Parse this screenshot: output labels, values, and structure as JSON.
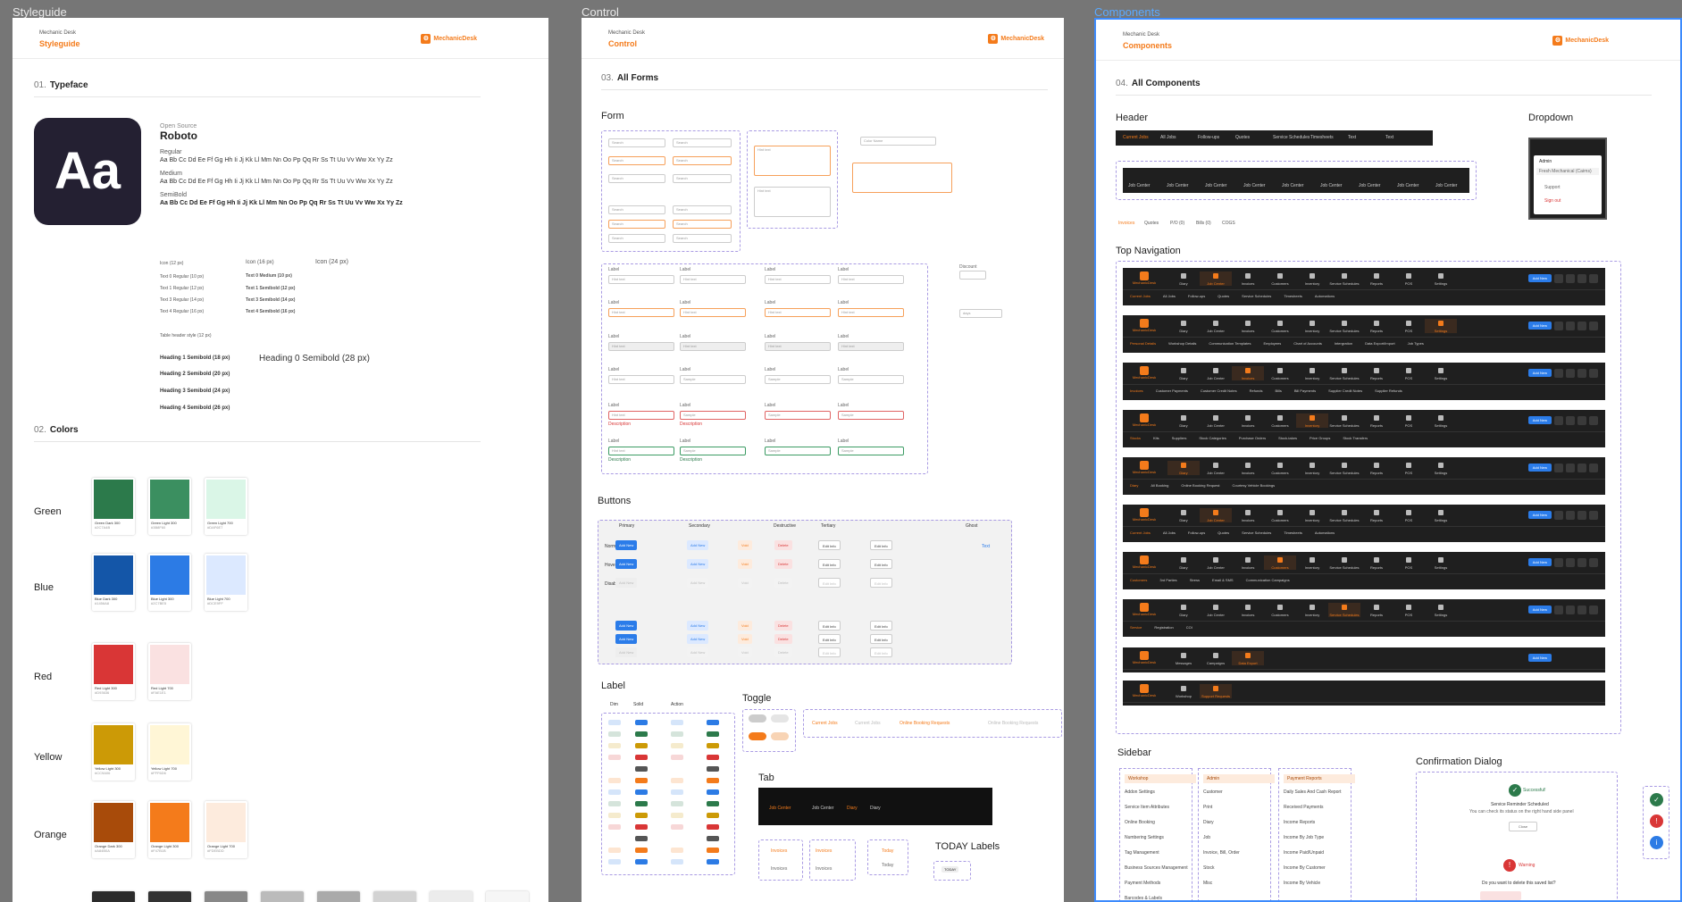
{
  "frames": {
    "styleguide": "Styleguide",
    "control": "Control",
    "components": "Components"
  },
  "brand": {
    "product": "Mechanic Desk",
    "logo_text": "MechanicDesk",
    "accent": "#f47b1b"
  },
  "styleguide": {
    "sec1_num": "01.",
    "sec1_title": "Typeface",
    "open_source": "Open Source",
    "family": "Roboto",
    "aa": "Aa",
    "regular": "Regular",
    "medium": "Medium",
    "semibold": "SemiBold",
    "alphabet": "Aa Bb Cc Dd Ee Ff Gg Hh Ii Jj Kk Ll Mm Nn Oo Pp Qq Rr Ss Tt Uu Vv Ww Xx Yy Zz",
    "icon12": "Icon (12 px)",
    "icon16": "Icon (16 px)",
    "icon24": "Icon (24 px)",
    "text_styles": [
      "Text 0 Regular (10 px)",
      "Text 1 Regular (12 px)",
      "Text 3 Regular (14 px)",
      "Text 4 Regular (16 px)",
      "Table header style (12 px)"
    ],
    "text_semibold": [
      "Text 0 Medium (10 px)",
      "Text 1 Semibold (12 px)",
      "Text 3 Semibold (14 px)",
      "Text 4 Semibold (16 px)"
    ],
    "headings": [
      "Heading 1 Semibold (18 px)",
      "Heading 2 Semibold (20 px)",
      "Heading 3 Semibold (24 px)",
      "Heading 4 Semibold (26 px)"
    ],
    "heading0": "Heading 0 Semibold (28 px)",
    "sec2_num": "02.",
    "sec2_title": "Colors",
    "colors": [
      {
        "group": "Green",
        "swatches": [
          {
            "name": "Green Dark 300",
            "hex": "#2C7A4B",
            "color": "#2c7a4b"
          },
          {
            "name": "Green Light 300",
            "hex": "#3B8F60",
            "color": "#3b8f60"
          },
          {
            "name": "Green Light 700",
            "hex": "#DAF6E7",
            "color": "#daf6e7"
          }
        ]
      },
      {
        "group": "Blue",
        "swatches": [
          {
            "name": "Blue Dark 300",
            "hex": "#1456A8",
            "color": "#1456a8"
          },
          {
            "name": "Blue Light 300",
            "hex": "#2C7BE5",
            "color": "#2c7be5"
          },
          {
            "name": "Blue Light 700",
            "hex": "#DCE9FF",
            "color": "#dce9ff"
          }
        ]
      },
      {
        "group": "Red",
        "swatches": [
          {
            "name": "Red Light 300",
            "hex": "#D93636",
            "color": "#d93636"
          },
          {
            "name": "Red Light 700",
            "hex": "#FAE1E1",
            "color": "#fae1e1"
          }
        ]
      },
      {
        "group": "Yellow",
        "swatches": [
          {
            "name": "Yellow Light 300",
            "hex": "#CC9A06",
            "color": "#cc9a06"
          },
          {
            "name": "Yellow Light 700",
            "hex": "#FFF6D6",
            "color": "#fff6d6"
          }
        ]
      },
      {
        "group": "Orange",
        "swatches": [
          {
            "name": "Orange Dark 300",
            "hex": "#A84B0A",
            "color": "#a84b0a"
          },
          {
            "name": "Orange Light 300",
            "hex": "#F47B1B",
            "color": "#f47b1b"
          },
          {
            "name": "Orange Light 700",
            "hex": "#FDEBDD",
            "color": "#fdebdd"
          }
        ]
      },
      {
        "group": "Grey",
        "swatches": []
      }
    ]
  },
  "control": {
    "sec_num": "03.",
    "sec_title": "All Forms",
    "form": "Form",
    "buttons": "Buttons",
    "label": "Label",
    "toggle": "Toggle",
    "tab": "Tab",
    "today_labels": "TODAY Labels",
    "search": "Search",
    "label_text": "Label",
    "hint_text": "Hint text",
    "sample": "Sample",
    "color_name": "Color Name",
    "description": "Description",
    "discount": "Discount",
    "days": "days",
    "text": "text",
    "btn_cols": [
      "Primary",
      "Secondary",
      "Destructive",
      "Tertiary",
      "Ghost"
    ],
    "btn_rows": [
      "Normal",
      "Hover",
      "Disable"
    ],
    "add_new": "Add New",
    "void": "Void",
    "delete": "Delete",
    "edit_info": "Edit Info",
    "text_btn": "Text",
    "label_cols": [
      "Dim",
      "Solid",
      "Action"
    ],
    "status_tabs": [
      "Current Jobs",
      "Current Jobs",
      "Online Booking Requests",
      "Online Booking Requests"
    ],
    "tab_items": [
      "Job Center",
      "Job Center",
      "Diary",
      "Diary"
    ],
    "invoices": "Invoices",
    "today": "Today",
    "today_badge": "TODAY"
  },
  "components": {
    "sec_num": "04.",
    "sec_title": "All Components",
    "header": "Header",
    "dropdown": "Dropdown",
    "top_nav": "Top Navigation",
    "sidebar": "Sidebar",
    "confirm": "Confirmation Dialog",
    "header_tabs": [
      "Current Jobs",
      "All Jobs",
      "Follow-ups",
      "Quotes",
      "Service Schedules",
      "Timesheets",
      "Text",
      "Text"
    ],
    "job_center": "Job Center",
    "sub_tabs": [
      "Invoices",
      "Quotes",
      "P/O (0)",
      "Bills (0)",
      "COGS"
    ],
    "dropdown_items": [
      "Admin",
      "Fresh Mechanical (Cairns)",
      "Support",
      "Sign out"
    ],
    "nav_items": [
      "Diary",
      "Job Center",
      "Invoices",
      "Customers",
      "Inventory",
      "Service Schedules",
      "Reports",
      "POS",
      "Settings"
    ],
    "add_new": "Add New",
    "search": "Search",
    "nav_subs": [
      [
        "Current Jobs",
        "All Jobs",
        "Follow-ups",
        "Quotes",
        "Service Schedules",
        "Timesheets",
        "Automations"
      ],
      [
        "Personal Details",
        "Workshop Details",
        "Communication Templates",
        "Employees",
        "Chart of Accounts",
        "Intergration",
        "Data Export/Import",
        "Job Types"
      ],
      [
        "Invoices",
        "Customer Payments",
        "Customer Credit Notes",
        "Refunds",
        "Bills",
        "Bill Payments",
        "Supplier Credit Notes",
        "Supplier Refunds"
      ],
      [
        "Stocks",
        "Kits",
        "Suppliers",
        "Stock Categories",
        "Purchase Orders",
        "Stock-takes",
        "Price Groups",
        "Stock Transfers"
      ],
      [
        "Diary",
        "All Booking",
        "Online Booking Request",
        "Courtesy Vehicle Bookings"
      ],
      [
        "Current Jobs",
        "All Jobs",
        "Follow-ups",
        "Quotes",
        "Service Schedules",
        "Timesheets",
        "Automations"
      ],
      [
        "Customers",
        "3rd Parties",
        "Stress",
        "Email & SMS",
        "Communication Campaigns"
      ],
      [
        "Service",
        "Registration",
        "COI"
      ]
    ],
    "nav_short": [
      "Messages",
      "Campaigns",
      "Data Export"
    ],
    "nav_tiny": [
      "Workshop",
      "Support Requests"
    ],
    "sidebar_col1": [
      "Workshop",
      "Addon Settings",
      "Service Item Attributes",
      "Online Booking",
      "Numbering Settings",
      "Tag Management",
      "Business Sources Management",
      "Payment Methods",
      "Barcodes & Labels"
    ],
    "sidebar_col2": [
      "Admin",
      "Customer",
      "Print",
      "Diary",
      "Job",
      "Invoice, Bill, Order",
      "Stock",
      "Misc"
    ],
    "sidebar_col3": [
      "Payment Reports",
      "Daily Sales And Cash Report",
      "Received Payments",
      "Income Reports",
      "Income By Job Type",
      "Income Paid/Unpaid",
      "Income By Customer",
      "Income By Vehicle"
    ],
    "successful": "Successful!",
    "success_msg": "Service Reminder Scheduled",
    "success_sub": "You can check its status on the right hand side panel",
    "close": "Close",
    "warning": "Warning",
    "warning_msg": "Do you want to delete this saved list?"
  }
}
